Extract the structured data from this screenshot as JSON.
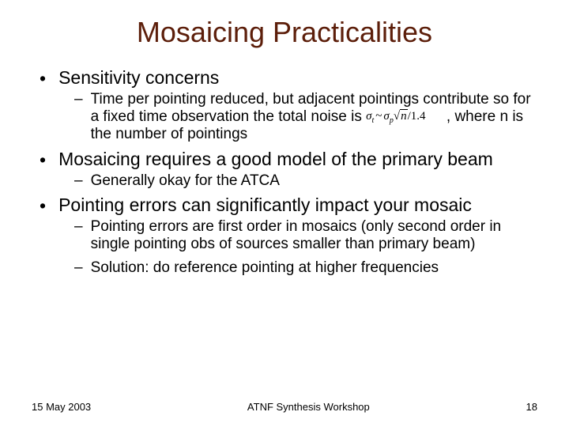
{
  "title": "Mosaicing Practicalities",
  "bullets": {
    "b1": "Sensitivity concerns",
    "b1_1_part1": "Time per pointing reduced, but adjacent pointings contribute so for a fixed time observation the total noise is ",
    "b1_1_part2": ", where n is the number of pointings",
    "b2": "Mosaicing requires a good model of the primary beam",
    "b2_1": "Generally okay for the ATCA",
    "b3": "Pointing errors can significantly impact your mosaic",
    "b3_1": "Pointing errors are first order in mosaics (only second order in single pointing obs of sources smaller than primary beam)",
    "b3_2": "Solution: do reference pointing at higher frequencies"
  },
  "formula": {
    "sigma_t": "σ",
    "sub_t": "t",
    "tilde": "~",
    "sigma_p": "σ",
    "sub_p": "p",
    "sqrt_inner": "n",
    "divisor": "1.4"
  },
  "footer": {
    "date": "15 May 2003",
    "center": "ATNF Synthesis Workshop",
    "page": "18"
  },
  "colors": {
    "title_color": "#5c1e0a",
    "text_color": "#000000",
    "background": "#ffffff"
  },
  "fonts": {
    "title_size": 36,
    "bullet1_size": 23,
    "bullet2_size": 19,
    "footer_size": 13
  }
}
